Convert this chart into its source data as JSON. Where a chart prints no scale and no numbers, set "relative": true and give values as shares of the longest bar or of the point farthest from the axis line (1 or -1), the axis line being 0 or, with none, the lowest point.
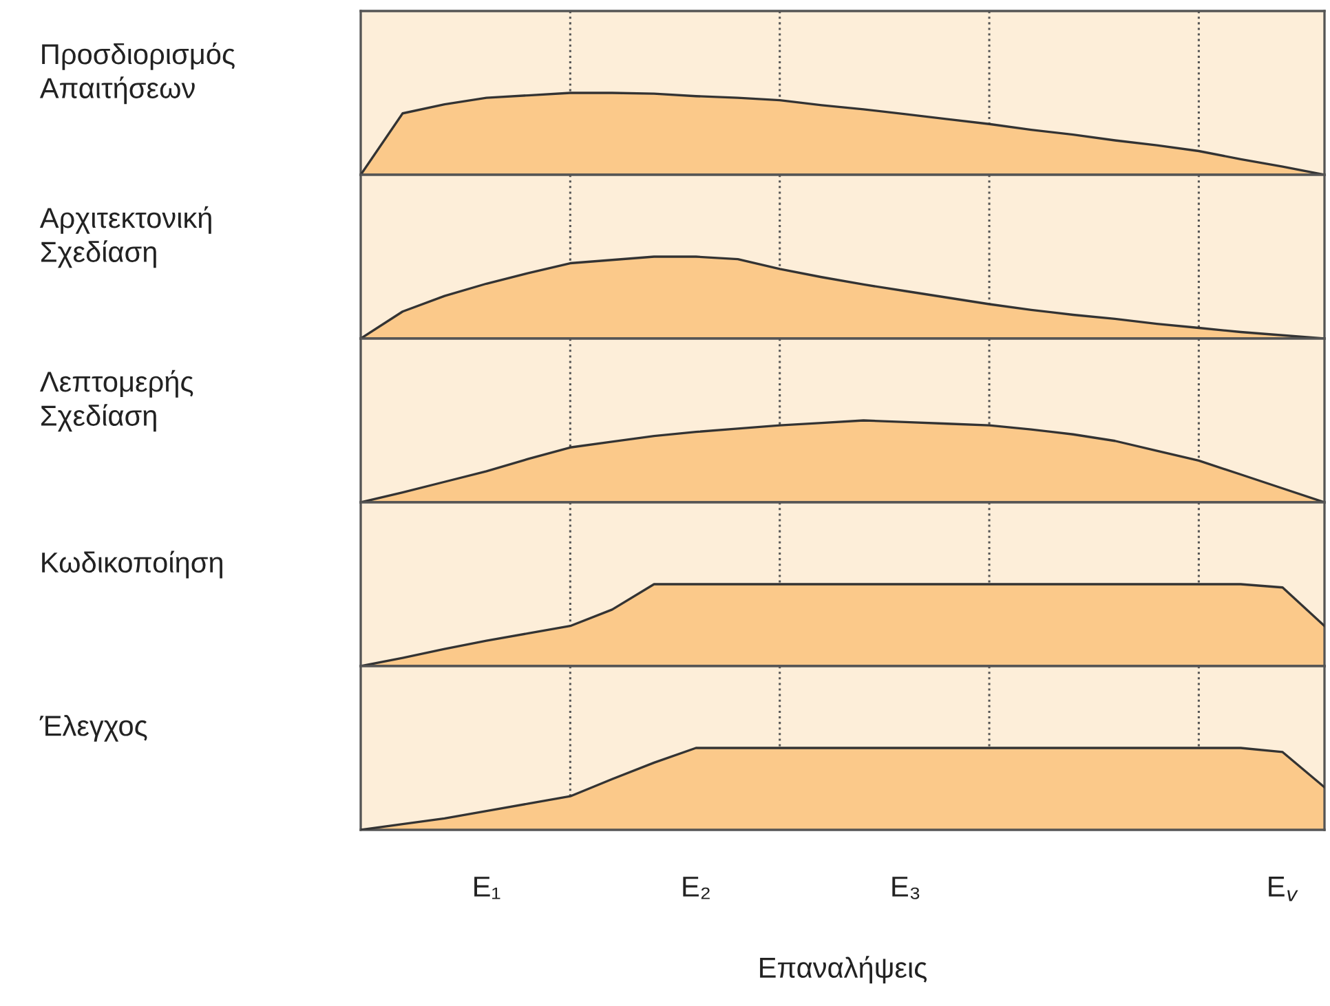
{
  "chart_data": [
    {
      "type": "area",
      "ylabel": "Προσδιορισμός\nΑπαιτήσεων",
      "relative": true,
      "tick_labels": false,
      "grid": "x",
      "color": "#fbc98a",
      "categories": [
        null,
        null,
        null,
        null,
        null,
        null,
        null,
        null,
        null,
        null,
        null,
        null,
        null,
        null,
        null,
        null,
        null,
        null,
        null,
        null,
        null,
        null,
        null,
        null
      ],
      "values": [
        0,
        0.75,
        0.86,
        0.94,
        0.97,
        1.0,
        1.0,
        0.99,
        0.96,
        0.94,
        0.91,
        0.85,
        0.8,
        0.74,
        0.68,
        0.62,
        0.55,
        0.49,
        0.42,
        0.36,
        0.29,
        0.19,
        0.1,
        0
      ]
    },
    {
      "type": "area",
      "ylabel": "Αρχιτεκτονική\nΣχεδίαση",
      "relative": true,
      "tick_labels": false,
      "grid": "x",
      "color": "#fbc98a",
      "categories": [
        null,
        null,
        null,
        null,
        null,
        null,
        null,
        null,
        null,
        null,
        null,
        null,
        null,
        null,
        null,
        null,
        null,
        null,
        null,
        null,
        null,
        null,
        null,
        null
      ],
      "values": [
        0,
        0.33,
        0.52,
        0.67,
        0.8,
        0.92,
        0.96,
        1.0,
        1.0,
        0.97,
        0.85,
        0.75,
        0.66,
        0.58,
        0.5,
        0.42,
        0.35,
        0.29,
        0.24,
        0.18,
        0.13,
        0.08,
        0.04,
        0
      ]
    },
    {
      "type": "area",
      "ylabel": "Λεπτομερής\nΣχεδίαση",
      "relative": true,
      "tick_labels": false,
      "grid": "x",
      "color": "#fbc98a",
      "categories": [
        null,
        null,
        null,
        null,
        null,
        null,
        null,
        null,
        null,
        null,
        null,
        null,
        null,
        null,
        null,
        null,
        null,
        null,
        null,
        null,
        null,
        null,
        null,
        null
      ],
      "values": [
        0,
        0.12,
        0.25,
        0.38,
        0.53,
        0.67,
        0.74,
        0.81,
        0.86,
        0.9,
        0.94,
        0.97,
        1.0,
        0.98,
        0.96,
        0.94,
        0.89,
        0.83,
        0.75,
        0.63,
        0.51,
        0.34,
        0.17,
        0
      ]
    },
    {
      "type": "area",
      "ylabel": "Κωδικοποίηση",
      "relative": true,
      "tick_labels": false,
      "grid": "x",
      "color": "#fbc98a",
      "categories": [
        null,
        null,
        null,
        null,
        null,
        null,
        null,
        null,
        null,
        null,
        null,
        null,
        null,
        null,
        null,
        null,
        null,
        null,
        null,
        null,
        null,
        null,
        null,
        null
      ],
      "values": [
        0,
        0.1,
        0.21,
        0.31,
        0.4,
        0.49,
        0.69,
        1.0,
        1.0,
        1.0,
        1.0,
        1.0,
        1.0,
        1.0,
        1.0,
        1.0,
        1.0,
        1.0,
        1.0,
        1.0,
        1.0,
        1.0,
        0.96,
        0.49
      ]
    },
    {
      "type": "area",
      "ylabel": "Έλεγχος",
      "xlabel": "Επαναλήψεις",
      "relative": true,
      "tick_labels": "x",
      "grid": "x",
      "color": "#fbc98a",
      "categories": [
        null,
        null,
        null,
        "E₁",
        null,
        null,
        null,
        null,
        "E₂",
        null,
        null,
        null,
        null,
        "E₃",
        null,
        null,
        null,
        null,
        null,
        null,
        null,
        null,
        "E$_{v}$",
        null
      ],
      "values": [
        0,
        0.07,
        0.14,
        0.23,
        0.32,
        0.41,
        0.62,
        0.82,
        1.0,
        1.0,
        1.0,
        1.0,
        1.0,
        1.0,
        1.0,
        1.0,
        1.0,
        1.0,
        1.0,
        1.0,
        1.0,
        1.0,
        0.95,
        0.52
      ]
    }
  ]
}
